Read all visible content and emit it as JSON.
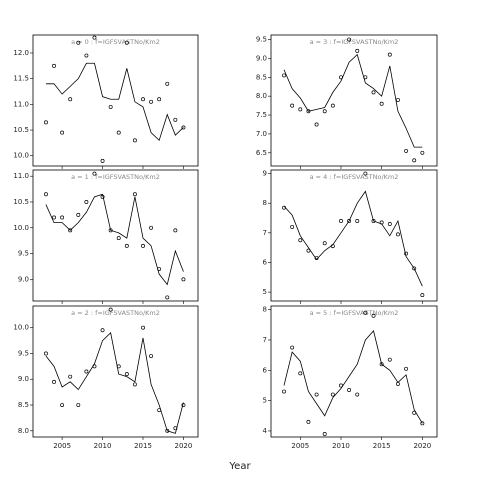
{
  "xlabel": "Year",
  "chart_data": [
    {
      "type": "line",
      "title": "a = 0 : f=IGFSVASTNo/Km2",
      "x": [
        2003,
        2004,
        2005,
        2006,
        2007,
        2008,
        2009,
        2010,
        2011,
        2012,
        2013,
        2014,
        2015,
        2016,
        2017,
        2018,
        2019,
        2020
      ],
      "series": [
        {
          "type": "line",
          "color": "#000000",
          "values": [
            11.4,
            11.4,
            11.2,
            11.35,
            11.5,
            11.8,
            11.8,
            11.15,
            11.1,
            11.1,
            11.7,
            11.05,
            10.95,
            10.45,
            10.3,
            10.8,
            10.4,
            10.55
          ]
        },
        {
          "type": "scatter",
          "color": "#000000",
          "values": [
            10.65,
            11.75,
            10.45,
            11.1,
            12.2,
            11.95,
            12.3,
            9.9,
            10.95,
            10.45,
            12.2,
            10.3,
            11.1,
            11.05,
            11.1,
            11.4,
            10.7,
            10.55
          ]
        }
      ],
      "xlim": [
        2001.4,
        2021.8
      ],
      "xticks": [
        2005,
        2010,
        2015,
        2020
      ],
      "ylim": [
        9.8,
        12.35
      ],
      "yticks": [
        {
          "value": 10,
          "label": "10.0"
        },
        10.5,
        {
          "value": 11,
          "label": "11.0"
        },
        11.5,
        {
          "value": 12,
          "label": "12.0"
        }
      ]
    },
    {
      "type": "line",
      "title": "a = 3 : f=IGFSVASTNo/Km2",
      "x": [
        2003,
        2004,
        2005,
        2006,
        2007,
        2008,
        2009,
        2010,
        2011,
        2012,
        2013,
        2014,
        2015,
        2016,
        2017,
        2018,
        2019,
        2020
      ],
      "series": [
        {
          "type": "line",
          "color": "#000000",
          "values": [
            8.7,
            8.2,
            7.95,
            7.6,
            7.65,
            7.7,
            8.1,
            8.4,
            8.9,
            9.1,
            8.35,
            8.2,
            8.0,
            8.8,
            7.6,
            7.15,
            6.65,
            6.65
          ]
        },
        {
          "type": "scatter",
          "color": "#000000",
          "values": [
            8.55,
            7.75,
            7.65,
            7.6,
            7.25,
            7.6,
            7.75,
            8.5,
            9.5,
            9.2,
            8.5,
            8.1,
            7.8,
            9.1,
            7.9,
            6.55,
            6.3,
            6.5
          ]
        }
      ],
      "xlim": [
        2001.4,
        2021.8
      ],
      "xticks": [
        2005,
        2010,
        2015,
        2020
      ],
      "ylim": [
        6.15,
        9.62
      ],
      "yticks": [
        6.5,
        {
          "value": 7,
          "label": "7.0"
        },
        7.5,
        {
          "value": 8,
          "label": "8.0"
        },
        8.5,
        {
          "value": 9,
          "label": "9.0"
        },
        9.5
      ]
    },
    {
      "type": "line",
      "title": "a = 1 : f=IGFSVASTNo/Km2",
      "x": [
        2003,
        2004,
        2005,
        2006,
        2007,
        2008,
        2009,
        2010,
        2011,
        2012,
        2013,
        2014,
        2015,
        2016,
        2017,
        2018,
        2019,
        2020
      ],
      "series": [
        {
          "type": "line",
          "color": "#000000",
          "values": [
            10.45,
            10.1,
            10.1,
            9.95,
            10.1,
            10.3,
            10.6,
            10.65,
            9.95,
            9.9,
            9.8,
            10.6,
            9.8,
            9.65,
            9.1,
            8.9,
            9.55,
            9.15
          ]
        },
        {
          "type": "scatter",
          "color": "#000000",
          "values": [
            10.65,
            10.2,
            10.2,
            9.95,
            10.25,
            10.5,
            11.05,
            10.6,
            9.95,
            9.8,
            9.65,
            10.65,
            9.65,
            10.0,
            9.2,
            8.65,
            9.95,
            9.0
          ]
        }
      ],
      "xlim": [
        2001.4,
        2021.8
      ],
      "xticks": [
        2005,
        2010,
        2015,
        2020
      ],
      "ylim": [
        8.58,
        11.12
      ],
      "yticks": [
        {
          "value": 9,
          "label": "9.0"
        },
        9.5,
        {
          "value": 10,
          "label": "10.0"
        },
        10.5,
        {
          "value": 11,
          "label": "11.0"
        }
      ]
    },
    {
      "type": "line",
      "title": "a = 4 : f=IGFSVASTNo/Km2",
      "x": [
        2003,
        2004,
        2005,
        2006,
        2007,
        2008,
        2009,
        2010,
        2011,
        2012,
        2013,
        2014,
        2015,
        2016,
        2017,
        2018,
        2019,
        2020
      ],
      "series": [
        {
          "type": "line",
          "color": "#000000",
          "values": [
            7.9,
            7.6,
            6.9,
            6.5,
            6.1,
            6.4,
            6.6,
            7.0,
            7.4,
            8.0,
            8.4,
            7.4,
            7.3,
            6.9,
            7.4,
            6.2,
            5.8,
            5.2
          ]
        },
        {
          "type": "scatter",
          "color": "#000000",
          "values": [
            7.85,
            7.2,
            6.75,
            6.4,
            6.15,
            6.65,
            6.55,
            7.4,
            7.4,
            7.4,
            9.0,
            7.4,
            7.35,
            7.3,
            6.95,
            6.3,
            5.8,
            4.9
          ]
        }
      ],
      "xlim": [
        2001.4,
        2021.8
      ],
      "xticks": [
        2005,
        2010,
        2015,
        2020
      ],
      "ylim": [
        4.7,
        9.12
      ],
      "yticks": [
        5,
        6,
        7,
        8,
        9
      ]
    },
    {
      "type": "line",
      "title": "a = 2 : f=IGFSVASTNo/Km2",
      "x": [
        2003,
        2004,
        2005,
        2006,
        2007,
        2008,
        2009,
        2010,
        2011,
        2012,
        2013,
        2014,
        2015,
        2016,
        2017,
        2018,
        2019,
        2020
      ],
      "series": [
        {
          "type": "line",
          "color": "#000000",
          "values": [
            9.45,
            9.25,
            8.85,
            8.95,
            8.8,
            9.05,
            9.3,
            9.75,
            9.9,
            9.1,
            9.05,
            8.95,
            9.8,
            8.9,
            8.5,
            8.0,
            7.95,
            8.55
          ]
        },
        {
          "type": "scatter",
          "color": "#000000",
          "values": [
            9.5,
            8.95,
            8.5,
            9.05,
            8.5,
            9.15,
            9.25,
            9.95,
            10.35,
            9.25,
            9.1,
            8.9,
            10.0,
            9.45,
            8.4,
            8.0,
            8.05,
            8.5
          ]
        }
      ],
      "xlim": [
        2001.4,
        2021.8
      ],
      "xticks": [
        2005,
        2010,
        2015,
        2020
      ],
      "ylim": [
        7.88,
        10.42
      ],
      "yticks": [
        {
          "value": 8,
          "label": "8.0"
        },
        8.5,
        {
          "value": 9,
          "label": "9.0"
        },
        9.5,
        {
          "value": 10,
          "label": "10.0"
        }
      ]
    },
    {
      "type": "line",
      "title": "a = 5 : f=IGFSVASTNo/Km2",
      "x": [
        2003,
        2004,
        2005,
        2006,
        2007,
        2008,
        2009,
        2010,
        2011,
        2012,
        2013,
        2014,
        2015,
        2016,
        2017,
        2018,
        2019,
        2020
      ],
      "series": [
        {
          "type": "line",
          "color": "#000000",
          "values": [
            5.5,
            6.6,
            6.3,
            5.3,
            4.9,
            4.5,
            5.1,
            5.4,
            5.8,
            6.2,
            7.0,
            7.3,
            6.2,
            6.0,
            5.6,
            5.85,
            4.7,
            4.25
          ]
        },
        {
          "type": "scatter",
          "color": "#000000",
          "values": [
            5.3,
            6.75,
            5.9,
            4.3,
            5.2,
            3.9,
            5.2,
            5.5,
            5.35,
            5.2,
            7.9,
            7.8,
            6.2,
            6.35,
            5.55,
            6.05,
            4.6,
            4.25
          ]
        }
      ],
      "xlim": [
        2001.4,
        2021.8
      ],
      "xticks": [
        2005,
        2010,
        2015,
        2020
      ],
      "ylim": [
        3.8,
        8.12
      ],
      "yticks": [
        4,
        5,
        6,
        7,
        8
      ]
    }
  ]
}
